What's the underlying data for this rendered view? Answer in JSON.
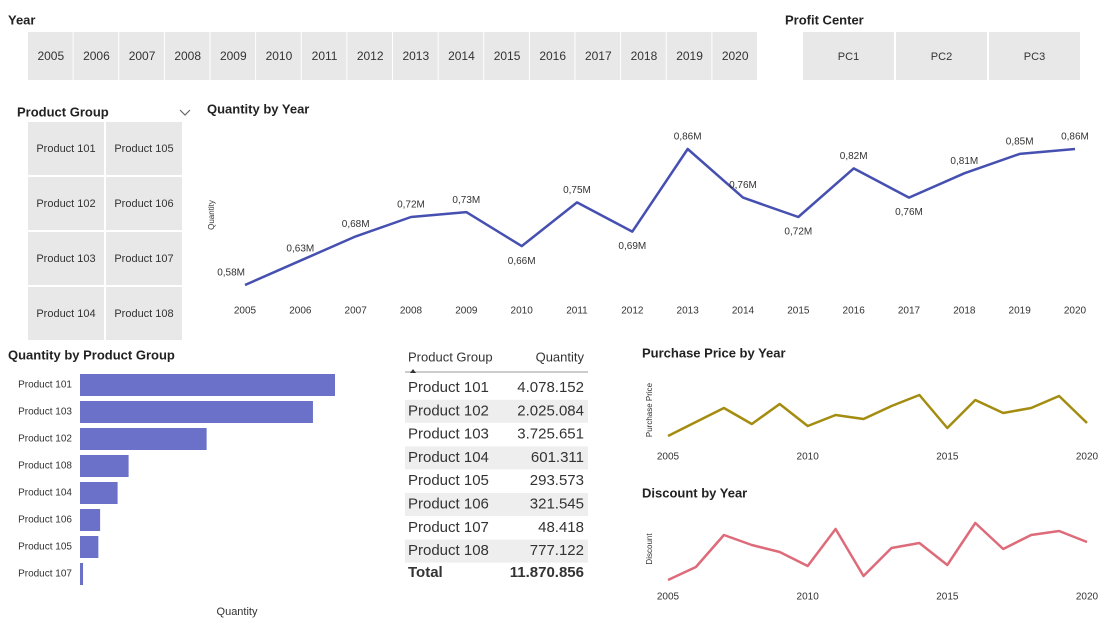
{
  "slicers": {
    "year": {
      "title": "Year",
      "items": [
        "2005",
        "2006",
        "2007",
        "2008",
        "2009",
        "2010",
        "2011",
        "2012",
        "2013",
        "2014",
        "2015",
        "2016",
        "2017",
        "2018",
        "2019",
        "2020"
      ]
    },
    "profit_center": {
      "title": "Profit Center",
      "items": [
        "PC1",
        "PC2",
        "PC3"
      ]
    },
    "product_group": {
      "title": "Product Group",
      "items": [
        "Product 101",
        "Product 102",
        "Product 103",
        "Product 104",
        "Product 105",
        "Product 106",
        "Product 107",
        "Product 108"
      ]
    }
  },
  "chart_data": [
    {
      "type": "line",
      "title": "Quantity by Year",
      "y_label": "Quantity",
      "x": [
        2005,
        2006,
        2007,
        2008,
        2009,
        2010,
        2011,
        2012,
        2013,
        2014,
        2015,
        2016,
        2017,
        2018,
        2019,
        2020
      ],
      "values": [
        580000,
        630000,
        680000,
        720000,
        730000,
        660000,
        750000,
        690000,
        860000,
        760000,
        720000,
        820000,
        760000,
        810000,
        850000,
        860000
      ],
      "value_labels": [
        "0,58M",
        "0,63M",
        "0,68M",
        "0,72M",
        "0,73M",
        "0,66M",
        "0,75M",
        "0,69M",
        "0,86M",
        "0,76M",
        "0,72M",
        "0,82M",
        "0,76M",
        "0,81M",
        "0,85M",
        "0,86M"
      ],
      "color": "#4650b0"
    },
    {
      "type": "bar",
      "orientation": "horizontal",
      "title": "Quantity by Product Group",
      "x_label": "Quantity",
      "categories": [
        "Product 101",
        "Product 103",
        "Product 102",
        "Product 108",
        "Product 104",
        "Product 106",
        "Product 105",
        "Product 107"
      ],
      "values": [
        4078152,
        3725651,
        2025084,
        777122,
        601311,
        321545,
        293573,
        48418
      ],
      "color": "#6b70c8"
    },
    {
      "type": "line",
      "title": "Purchase Price by Year",
      "y_label": "Purchase Price",
      "x": [
        2005,
        2006,
        2007,
        2008,
        2009,
        2010,
        2011,
        2012,
        2013,
        2014,
        2015,
        2016,
        2017,
        2018,
        2019,
        2020
      ],
      "values": [
        14,
        28,
        42,
        26,
        46,
        24,
        35,
        31,
        44,
        55,
        22,
        50,
        37,
        42,
        54,
        27
      ],
      "xlim": [
        2005,
        2020
      ],
      "xticks": [
        2005,
        2010,
        2015,
        2020
      ],
      "color": "#a38c10"
    },
    {
      "type": "line",
      "title": "Discount by Year",
      "y_label": "Discount",
      "x": [
        2005,
        2006,
        2007,
        2008,
        2009,
        2010,
        2011,
        2012,
        2013,
        2014,
        2015,
        2016,
        2017,
        2018,
        2019,
        2020
      ],
      "values": [
        10,
        23,
        55,
        45,
        38,
        24,
        61,
        14,
        42,
        47,
        25,
        67,
        41,
        55,
        59,
        48
      ],
      "xlim": [
        2005,
        2020
      ],
      "xticks": [
        2005,
        2010,
        2015,
        2020
      ],
      "color": "#dd6b7a"
    }
  ],
  "table": {
    "columns": [
      "Product Group",
      "Quantity"
    ],
    "rows": [
      [
        "Product 101",
        "4.078.152"
      ],
      [
        "Product 102",
        "2.025.084"
      ],
      [
        "Product 103",
        "3.725.651"
      ],
      [
        "Product 104",
        "601.311"
      ],
      [
        "Product 105",
        "293.573"
      ],
      [
        "Product 106",
        "321.545"
      ],
      [
        "Product 107",
        "48.418"
      ],
      [
        "Product 108",
        "777.122"
      ]
    ],
    "total": [
      "Total",
      "11.870.856"
    ]
  }
}
